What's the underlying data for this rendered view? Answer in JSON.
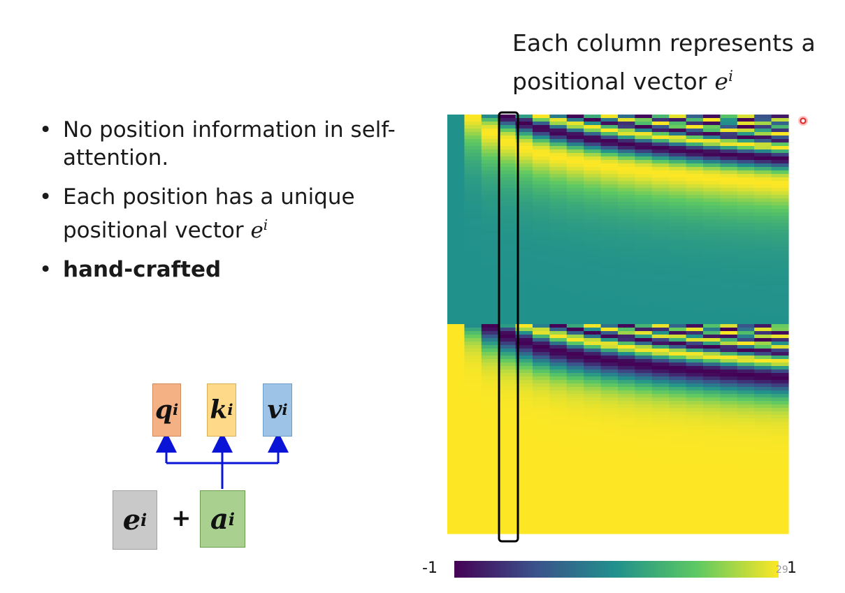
{
  "caption": {
    "line1": "Each column represents a",
    "line2_text": "positional vector ",
    "math_base": "e",
    "math_sup": "i"
  },
  "bullets": [
    {
      "text": "No position information in self-attention.",
      "bold": false
    },
    {
      "text": "Each position has a unique positional vector ",
      "math_base": "e",
      "math_sup": "i",
      "bold": false
    },
    {
      "text": "hand-crafted",
      "bold": true
    }
  ],
  "bullet_glyph": "•",
  "diagram": {
    "q": {
      "base": "q",
      "sup": "i",
      "color": "#f4b183"
    },
    "k": {
      "base": "k",
      "sup": "i",
      "color": "#ffd98a"
    },
    "v": {
      "base": "v",
      "sup": "i",
      "color": "#9dc3e6"
    },
    "e": {
      "base": "e",
      "sup": "i",
      "color": "#c9c9c9"
    },
    "a": {
      "base": "a",
      "sup": "i",
      "color": "#a9d08e"
    },
    "plus": "+",
    "arrow_color": "#0a14d6"
  },
  "heatmap": {
    "colormap": "viridis",
    "colors": [
      "#440154",
      "#3b528b",
      "#21918c",
      "#5ec962",
      "#fde725"
    ],
    "highlight_column_index": 3,
    "highlight_color": "#000000"
  },
  "colorbar": {
    "min_label": "-1",
    "max_label": "1"
  },
  "page_number": "29"
}
